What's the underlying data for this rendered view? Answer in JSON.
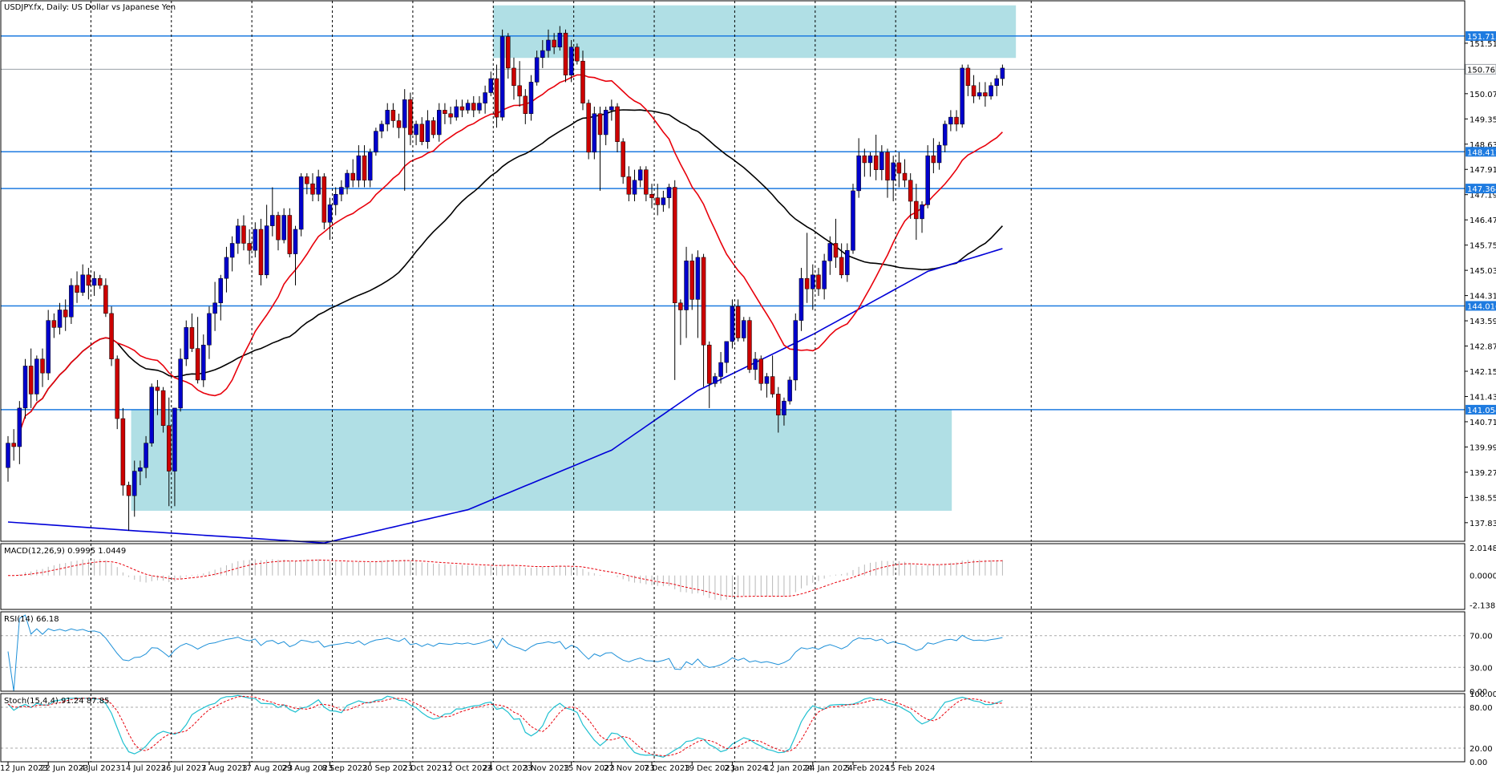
{
  "chart_data": {
    "type": "candlestick",
    "title": "USDJPY.fx, Daily:  US Dollar vs Japanese Yen",
    "price_ticks": [
      "151.510",
      "150.070",
      "149.350",
      "148.630",
      "147.910",
      "147.190",
      "146.470",
      "145.750",
      "145.030",
      "144.310",
      "143.590",
      "142.870",
      "142.150",
      "141.430",
      "140.710",
      "139.990",
      "139.270",
      "138.550",
      "137.830"
    ],
    "price_range": [
      137.3,
      152.72
    ],
    "x_tick_labels": [
      "12 Jun 2023",
      "22 Jun 2023",
      "4 Jul 2023",
      "14 Jul 2023",
      "26 Jul 2023",
      "7 Aug 2023",
      "17 Aug 2023",
      "29 Aug 2023",
      "8 Sep 2023",
      "20 Sep 2023",
      "2 Oct 2023",
      "12 Oct 2023",
      "24 Oct 2023",
      "3 Nov 2023",
      "15 Nov 2023",
      "27 Nov 2023",
      "7 Dec 2023",
      "19 Dec 2023",
      "2 Jan 2024",
      "12 Jan 2024",
      "24 Jan 2024",
      "5 Feb 2024",
      "15 Feb 2024"
    ],
    "vertical_grid_labels": [
      "4 Jul 2023",
      "26 Jul 2023",
      "17 Aug 2023",
      "8 Sep 2023",
      "2 Oct 2023",
      "24 Oct 2023",
      "15 Nov 2023",
      "7 Dec 2023",
      "2 Jan 2024",
      "24 Jan 2024",
      "15 Feb 2024"
    ],
    "horizontal_levels": [
      {
        "value": 151.715,
        "label": "151.715"
      },
      {
        "value": 148.412,
        "label": "148.412"
      },
      {
        "value": 147.364,
        "label": "147.364"
      },
      {
        "value": 144.016,
        "label": "144.016"
      },
      {
        "value": 141.054,
        "label": "141.054"
      }
    ],
    "current_price": {
      "value": 150.767,
      "label": "150.767"
    },
    "zones": [
      {
        "from_date": "24 Oct 2023",
        "to_date": "15 Feb 2024",
        "low": 151.09,
        "high": 152.59
      },
      {
        "from_date": "14 Jul 2023",
        "to_date": "15 Feb 2024",
        "low": 138.17,
        "high": 141.054
      }
    ],
    "ohlc": [
      [
        139.4,
        140.3,
        139.0,
        140.1
      ],
      [
        140.1,
        140.5,
        139.6,
        140.0
      ],
      [
        140.0,
        141.3,
        139.5,
        141.1
      ],
      [
        141.1,
        142.5,
        140.8,
        142.3
      ],
      [
        142.3,
        142.8,
        141.1,
        141.5
      ],
      [
        141.5,
        142.6,
        141.3,
        142.5
      ],
      [
        142.5,
        142.8,
        141.7,
        142.1
      ],
      [
        142.1,
        143.9,
        141.9,
        143.6
      ],
      [
        143.6,
        143.8,
        143.1,
        143.4
      ],
      [
        143.4,
        144.1,
        143.2,
        143.9
      ],
      [
        143.9,
        144.2,
        143.3,
        143.7
      ],
      [
        143.7,
        144.8,
        143.5,
        144.6
      ],
      [
        144.6,
        145.0,
        144.1,
        144.4
      ],
      [
        144.4,
        145.2,
        144.3,
        144.9
      ],
      [
        144.9,
        145.1,
        144.2,
        144.6
      ],
      [
        144.6,
        145.0,
        144.3,
        144.8
      ],
      [
        144.8,
        144.9,
        144.5,
        144.6
      ],
      [
        144.6,
        144.8,
        143.7,
        143.8
      ],
      [
        143.8,
        144.0,
        142.3,
        142.5
      ],
      [
        142.5,
        142.6,
        140.5,
        140.8
      ],
      [
        140.8,
        141.1,
        138.6,
        138.9
      ],
      [
        138.9,
        139.0,
        137.6,
        138.6
      ],
      [
        138.6,
        139.6,
        138.0,
        139.3
      ],
      [
        139.3,
        139.6,
        138.9,
        139.4
      ],
      [
        139.4,
        140.3,
        139.1,
        140.1
      ],
      [
        140.1,
        141.8,
        140.0,
        141.7
      ],
      [
        141.7,
        141.9,
        140.9,
        141.6
      ],
      [
        141.6,
        141.7,
        140.4,
        140.6
      ],
      [
        140.6,
        141.4,
        138.3,
        139.3
      ],
      [
        139.3,
        141.1,
        138.3,
        141.1
      ],
      [
        141.1,
        142.8,
        141.0,
        142.5
      ],
      [
        142.5,
        143.6,
        142.3,
        143.4
      ],
      [
        143.4,
        143.8,
        142.7,
        142.8
      ],
      [
        142.8,
        143.7,
        141.8,
        141.9
      ],
      [
        141.9,
        143.2,
        141.7,
        142.9
      ],
      [
        142.9,
        144.0,
        142.5,
        143.8
      ],
      [
        143.8,
        144.7,
        143.3,
        144.1
      ],
      [
        144.1,
        144.9,
        143.6,
        144.8
      ],
      [
        144.8,
        145.7,
        144.4,
        145.4
      ],
      [
        145.4,
        146.0,
        145.0,
        145.8
      ],
      [
        145.8,
        146.5,
        145.5,
        146.3
      ],
      [
        146.3,
        146.6,
        145.6,
        145.8
      ],
      [
        145.8,
        146.2,
        145.2,
        145.6
      ],
      [
        145.6,
        146.4,
        145.4,
        146.2
      ],
      [
        146.2,
        146.5,
        144.6,
        144.9
      ],
      [
        144.9,
        146.9,
        144.8,
        146.3
      ],
      [
        146.3,
        147.4,
        146.0,
        146.6
      ],
      [
        146.6,
        146.7,
        145.6,
        145.9
      ],
      [
        145.9,
        146.8,
        145.8,
        146.6
      ],
      [
        146.6,
        146.8,
        145.4,
        145.5
      ],
      [
        145.5,
        146.3,
        144.6,
        146.2
      ],
      [
        146.2,
        147.8,
        146.0,
        147.7
      ],
      [
        147.7,
        147.8,
        147.2,
        147.5
      ],
      [
        147.5,
        147.8,
        147.0,
        147.2
      ],
      [
        147.2,
        147.9,
        147.0,
        147.7
      ],
      [
        147.7,
        147.8,
        146.2,
        146.4
      ],
      [
        146.4,
        147.1,
        145.9,
        146.9
      ],
      [
        146.9,
        147.4,
        146.6,
        147.2
      ],
      [
        147.2,
        147.6,
        147.0,
        147.4
      ],
      [
        147.4,
        147.9,
        147.2,
        147.8
      ],
      [
        147.8,
        148.2,
        147.4,
        147.6
      ],
      [
        147.6,
        148.6,
        147.4,
        148.3
      ],
      [
        148.3,
        148.6,
        147.4,
        147.6
      ],
      [
        147.6,
        148.5,
        147.4,
        148.4
      ],
      [
        148.4,
        149.1,
        148.3,
        149.0
      ],
      [
        149.0,
        149.3,
        148.8,
        149.2
      ],
      [
        149.2,
        149.8,
        149.0,
        149.6
      ],
      [
        149.6,
        149.8,
        149.1,
        149.3
      ],
      [
        149.3,
        149.5,
        148.8,
        149.1
      ],
      [
        149.1,
        150.2,
        147.3,
        149.9
      ],
      [
        149.9,
        150.1,
        148.6,
        148.9
      ],
      [
        148.9,
        149.3,
        148.6,
        149.2
      ],
      [
        149.2,
        149.4,
        148.6,
        148.7
      ],
      [
        148.7,
        149.6,
        148.5,
        149.3
      ],
      [
        149.3,
        149.4,
        148.8,
        148.9
      ],
      [
        148.9,
        149.8,
        148.7,
        149.6
      ],
      [
        149.6,
        149.8,
        149.2,
        149.5
      ],
      [
        149.5,
        149.7,
        149.2,
        149.4
      ],
      [
        149.4,
        149.9,
        149.3,
        149.7
      ],
      [
        149.7,
        149.9,
        149.4,
        149.6
      ],
      [
        149.6,
        149.9,
        149.5,
        149.8
      ],
      [
        149.8,
        150.0,
        149.4,
        149.6
      ],
      [
        149.6,
        150.0,
        149.5,
        149.8
      ],
      [
        149.8,
        150.3,
        149.5,
        150.1
      ],
      [
        150.1,
        150.7,
        150.0,
        150.5
      ],
      [
        150.5,
        150.9,
        149.1,
        149.4
      ],
      [
        149.4,
        151.9,
        149.3,
        151.7
      ],
      [
        151.7,
        151.8,
        150.5,
        150.8
      ],
      [
        150.8,
        151.1,
        149.9,
        150.3
      ],
      [
        150.3,
        151.0,
        149.7,
        150.0
      ],
      [
        150.0,
        150.2,
        149.2,
        149.5
      ],
      [
        149.5,
        150.6,
        149.3,
        150.4
      ],
      [
        150.4,
        151.3,
        150.3,
        151.1
      ],
      [
        151.1,
        151.6,
        150.8,
        151.3
      ],
      [
        151.3,
        151.9,
        151.1,
        151.6
      ],
      [
        151.6,
        151.8,
        151.2,
        151.4
      ],
      [
        151.4,
        152.0,
        151.3,
        151.8
      ],
      [
        151.8,
        151.9,
        150.4,
        150.6
      ],
      [
        150.6,
        151.6,
        150.4,
        151.4
      ],
      [
        151.4,
        151.5,
        150.9,
        151.0
      ],
      [
        151.0,
        151.3,
        149.6,
        149.8
      ],
      [
        149.8,
        149.9,
        148.2,
        148.4
      ],
      [
        148.4,
        149.7,
        148.2,
        149.5
      ],
      [
        149.5,
        149.7,
        147.3,
        148.9
      ],
      [
        148.9,
        149.7,
        148.6,
        149.6
      ],
      [
        149.6,
        149.9,
        149.3,
        149.7
      ],
      [
        149.7,
        149.8,
        148.4,
        148.7
      ],
      [
        148.7,
        148.8,
        147.5,
        147.7
      ],
      [
        147.7,
        148.0,
        147.0,
        147.2
      ],
      [
        147.2,
        147.9,
        147.0,
        147.6
      ],
      [
        147.6,
        148.0,
        147.4,
        147.9
      ],
      [
        147.9,
        148.0,
        147.0,
        147.2
      ],
      [
        147.2,
        147.5,
        146.8,
        147.1
      ],
      [
        147.1,
        147.5,
        146.6,
        146.9
      ],
      [
        146.9,
        147.3,
        146.7,
        147.1
      ],
      [
        147.1,
        147.5,
        146.8,
        147.4
      ],
      [
        147.4,
        147.6,
        141.9,
        144.1
      ],
      [
        144.1,
        144.2,
        142.9,
        143.9
      ],
      [
        143.9,
        145.7,
        143.1,
        145.3
      ],
      [
        145.3,
        145.5,
        143.9,
        144.2
      ],
      [
        144.2,
        145.6,
        143.1,
        145.4
      ],
      [
        145.4,
        145.5,
        141.7,
        142.9
      ],
      [
        142.9,
        143.0,
        141.1,
        141.8
      ],
      [
        141.8,
        142.1,
        141.7,
        142.0
      ],
      [
        142.0,
        142.7,
        141.8,
        142.4
      ],
      [
        142.4,
        143.0,
        142.1,
        143.0
      ],
      [
        143.0,
        144.2,
        142.8,
        144.0
      ],
      [
        144.0,
        144.2,
        143.0,
        143.1
      ],
      [
        143.1,
        143.7,
        143.0,
        143.6
      ],
      [
        143.6,
        143.7,
        142.1,
        142.2
      ],
      [
        142.2,
        142.7,
        141.9,
        142.5
      ],
      [
        142.5,
        142.6,
        141.6,
        141.8
      ],
      [
        141.8,
        142.1,
        141.4,
        142.0
      ],
      [
        142.0,
        142.6,
        141.4,
        141.5
      ],
      [
        141.5,
        141.7,
        140.4,
        140.9
      ],
      [
        140.9,
        141.4,
        140.6,
        141.3
      ],
      [
        141.3,
        142.0,
        141.2,
        141.9
      ],
      [
        141.9,
        143.8,
        141.6,
        143.6
      ],
      [
        143.6,
        145.1,
        143.3,
        144.8
      ],
      [
        144.8,
        146.1,
        144.1,
        144.5
      ],
      [
        144.5,
        145.2,
        143.9,
        144.9
      ],
      [
        144.9,
        145.1,
        144.3,
        144.5
      ],
      [
        144.5,
        145.5,
        144.2,
        145.3
      ],
      [
        145.3,
        146.0,
        144.9,
        145.8
      ],
      [
        145.8,
        146.5,
        145.1,
        145.4
      ],
      [
        145.4,
        145.8,
        144.8,
        144.9
      ],
      [
        144.9,
        145.8,
        144.7,
        145.6
      ],
      [
        145.6,
        147.5,
        145.5,
        147.3
      ],
      [
        147.3,
        148.8,
        147.1,
        148.3
      ],
      [
        148.3,
        148.5,
        147.7,
        148.1
      ],
      [
        148.1,
        148.4,
        147.7,
        148.3
      ],
      [
        148.3,
        148.9,
        147.6,
        147.9
      ],
      [
        147.9,
        148.6,
        147.6,
        148.4
      ],
      [
        148.4,
        148.5,
        147.1,
        147.6
      ],
      [
        147.6,
        148.3,
        147.0,
        148.1
      ],
      [
        148.1,
        148.4,
        147.4,
        147.8
      ],
      [
        147.8,
        148.2,
        147.4,
        147.6
      ],
      [
        147.6,
        147.8,
        146.5,
        147.0
      ],
      [
        147.0,
        147.5,
        145.9,
        146.5
      ],
      [
        146.5,
        147.0,
        146.1,
        146.9
      ],
      [
        146.9,
        148.6,
        146.8,
        148.3
      ],
      [
        148.3,
        148.8,
        147.8,
        148.1
      ],
      [
        148.1,
        148.7,
        147.9,
        148.6
      ],
      [
        148.6,
        149.3,
        148.4,
        149.2
      ],
      [
        149.2,
        149.6,
        149.0,
        149.4
      ],
      [
        149.4,
        149.6,
        149.0,
        149.2
      ],
      [
        149.2,
        150.9,
        149.1,
        150.8
      ],
      [
        150.8,
        150.9,
        150.0,
        150.3
      ],
      [
        150.3,
        150.6,
        149.8,
        150.0
      ],
      [
        150.0,
        150.4,
        149.9,
        150.1
      ],
      [
        150.1,
        150.4,
        149.7,
        150.0
      ],
      [
        150.0,
        150.4,
        149.9,
        150.3
      ],
      [
        150.3,
        150.6,
        150.0,
        150.5
      ],
      [
        150.5,
        150.9,
        150.3,
        150.8
      ]
    ],
    "moving_averages": [
      {
        "name": "MA20",
        "color": "#e8000b"
      },
      {
        "name": "MA50",
        "color": "#000000"
      },
      {
        "name": "MA200",
        "color": "#0000d8",
        "anchor": [
          [
            0,
            137.85
          ],
          [
            22,
            137.6
          ],
          [
            55,
            137.25
          ],
          [
            80,
            138.2
          ],
          [
            105,
            139.9
          ],
          [
            120,
            141.6
          ],
          [
            140,
            143.2
          ],
          [
            160,
            145.0
          ],
          [
            175,
            145.75
          ]
        ]
      }
    ],
    "colors": {
      "bull": "#0000cc",
      "bear": "#cc0000",
      "zone": "#b0dfe5",
      "level": "#1e7be0",
      "grid": "#000000"
    },
    "macd": {
      "label": "MACD(12,26,9) 0.9995 1.0449",
      "ticks": [
        "2.0148",
        "0.0000",
        "-2.1387"
      ],
      "range": [
        -2.45,
        2.3
      ],
      "signal_color": "#e8000b"
    },
    "rsi": {
      "label": "RSI(14) 66.18",
      "ticks": [
        "70.00",
        "30.00",
        "0.00"
      ],
      "levels": [
        70,
        30
      ],
      "color": "#1e90d8"
    },
    "stoch": {
      "label": "Stoch(15,4,4) 91.24 87.85",
      "ticks": [
        "100.00",
        "80.00",
        "20.00",
        "0.00"
      ],
      "levels": [
        80,
        20
      ],
      "main_color": "#1ec0d0",
      "signal_color": "#e8000b"
    }
  }
}
